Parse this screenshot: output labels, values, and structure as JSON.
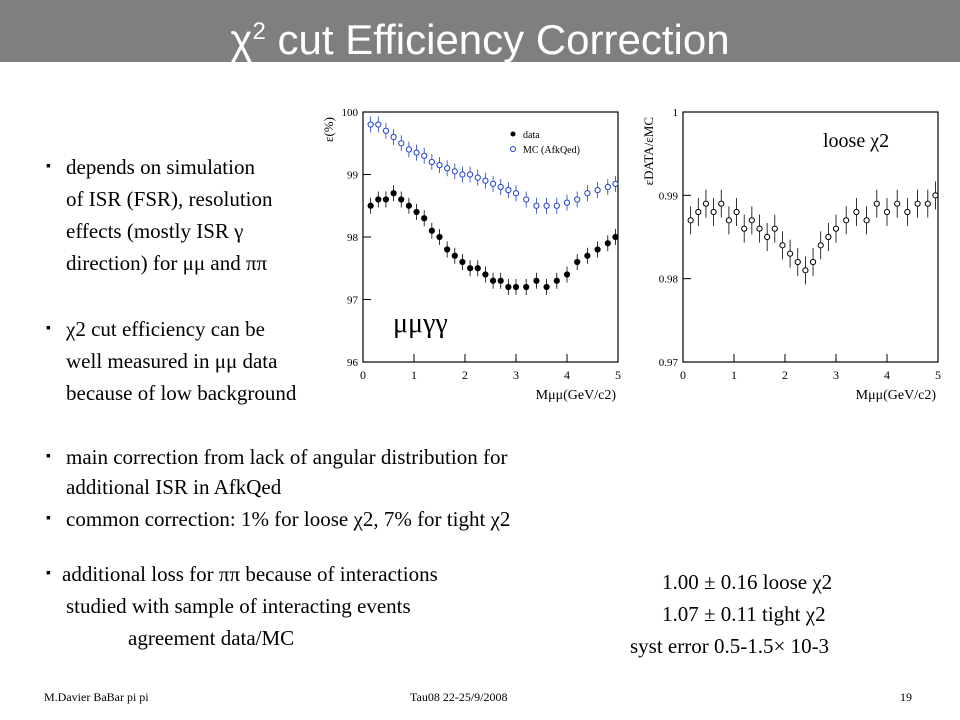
{
  "title": {
    "pre": "χ",
    "sup": "2",
    "post": " cut Efficiency Correction"
  },
  "bullets": {
    "b1": [
      "depends on simulation",
      "of ISR (FSR), resolution",
      "effects (mostly ISR γ",
      "direction) for μμ and ππ"
    ],
    "b2": [
      "χ2 cut efficiency can be",
      "well measured in  μμ data",
      "because of low background"
    ],
    "b3": [
      "main correction from lack of angular distribution for",
      "additional ISR in AfkQed"
    ],
    "b4": "common correction: 1% for loose χ2, 7% for tight χ2",
    "b5": [
      "additional loss for ππ because of interactions",
      "studied with sample of interacting events",
      "agreement data/MC"
    ]
  },
  "bullet_glyph": "▪",
  "results": {
    "line1": "1.00 ± 0.16     loose χ2",
    "line2": "1.07 ± 0.11     tight χ2",
    "line3": "syst error   0.5-1.5× 10-3"
  },
  "footer": {
    "left": "M.Davier    BaBar pi pi",
    "center": "Tau08  22-25/9/2008",
    "page": "19"
  },
  "chart_data": [
    {
      "type": "scatter",
      "ylabel": "ε(%)",
      "xlabel": "Mμμ(GeV/c2)",
      "xlim": [
        0,
        5
      ],
      "ylim": [
        96,
        100
      ],
      "xticks": [
        "0",
        "1",
        "2",
        "3",
        "4",
        "5"
      ],
      "yticks": [
        "96",
        "97",
        "98",
        "99",
        "100"
      ],
      "annotation": "μμγγ",
      "legend": [
        "data",
        "MC (AfkQed)"
      ],
      "series": [
        {
          "name": "data",
          "x": [
            0.15,
            0.3,
            0.45,
            0.6,
            0.75,
            0.9,
            1.05,
            1.2,
            1.35,
            1.5,
            1.65,
            1.8,
            1.95,
            2.1,
            2.25,
            2.4,
            2.55,
            2.7,
            2.85,
            3.0,
            3.2,
            3.4,
            3.6,
            3.8,
            4.0,
            4.2,
            4.4,
            4.6,
            4.8,
            4.95
          ],
          "y": [
            98.5,
            98.6,
            98.6,
            98.7,
            98.6,
            98.5,
            98.4,
            98.3,
            98.1,
            98.0,
            97.8,
            97.7,
            97.6,
            97.5,
            97.5,
            97.4,
            97.3,
            97.3,
            97.2,
            97.2,
            97.2,
            97.3,
            97.2,
            97.3,
            97.4,
            97.6,
            97.7,
            97.8,
            97.9,
            98.0
          ]
        },
        {
          "name": "MC (AfkQed)",
          "x": [
            0.15,
            0.3,
            0.45,
            0.6,
            0.75,
            0.9,
            1.05,
            1.2,
            1.35,
            1.5,
            1.65,
            1.8,
            1.95,
            2.1,
            2.25,
            2.4,
            2.55,
            2.7,
            2.85,
            3.0,
            3.2,
            3.4,
            3.6,
            3.8,
            4.0,
            4.2,
            4.4,
            4.6,
            4.8,
            4.95
          ],
          "y": [
            99.8,
            99.8,
            99.7,
            99.6,
            99.5,
            99.4,
            99.35,
            99.3,
            99.2,
            99.15,
            99.1,
            99.05,
            99.0,
            99.0,
            98.95,
            98.9,
            98.85,
            98.8,
            98.75,
            98.7,
            98.6,
            98.5,
            98.5,
            98.5,
            98.55,
            98.6,
            98.7,
            98.75,
            98.8,
            98.85
          ]
        }
      ]
    },
    {
      "type": "scatter",
      "ylabel": "εDATA/εMC",
      "xlabel": "Mμμ(GeV/c2)",
      "xlim": [
        0,
        5
      ],
      "ylim": [
        0.97,
        1.0
      ],
      "xticks": [
        "0",
        "1",
        "2",
        "3",
        "4",
        "5"
      ],
      "yticks": [
        "0.97",
        "0.98",
        "0.99",
        "1"
      ],
      "annotation": "loose χ2",
      "series": [
        {
          "name": "",
          "x": [
            0.15,
            0.3,
            0.45,
            0.6,
            0.75,
            0.9,
            1.05,
            1.2,
            1.35,
            1.5,
            1.65,
            1.8,
            1.95,
            2.1,
            2.25,
            2.4,
            2.55,
            2.7,
            2.85,
            3.0,
            3.2,
            3.4,
            3.6,
            3.8,
            4.0,
            4.2,
            4.4,
            4.6,
            4.8,
            4.95
          ],
          "y": [
            0.987,
            0.988,
            0.989,
            0.988,
            0.989,
            0.987,
            0.988,
            0.986,
            0.987,
            0.986,
            0.985,
            0.986,
            0.984,
            0.983,
            0.982,
            0.981,
            0.982,
            0.984,
            0.985,
            0.986,
            0.987,
            0.988,
            0.987,
            0.989,
            0.988,
            0.989,
            0.988,
            0.989,
            0.989,
            0.99
          ]
        }
      ]
    }
  ]
}
